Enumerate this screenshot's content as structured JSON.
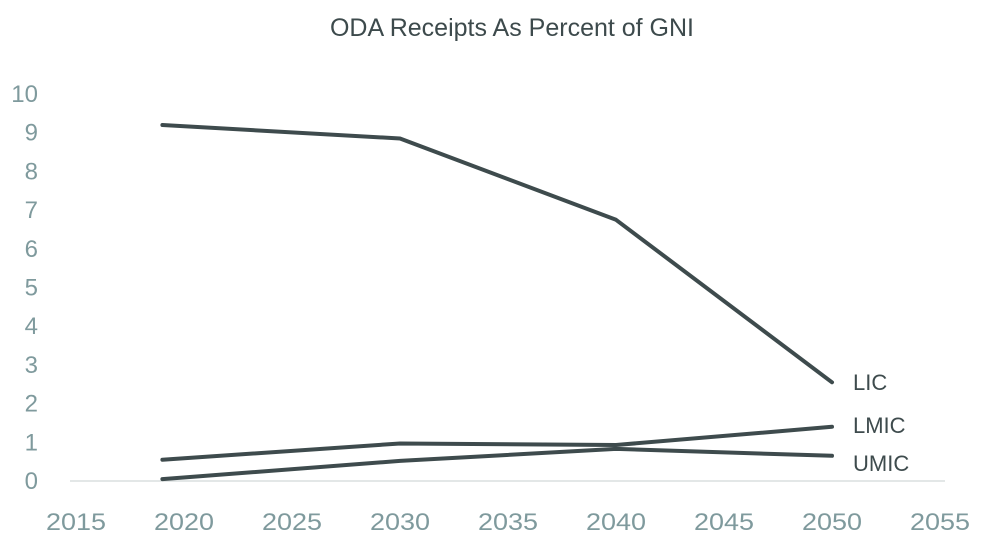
{
  "chart_data": {
    "type": "line",
    "title": "ODA Receipts As Percent of GNI",
    "xlabel": "",
    "ylabel": "",
    "xlim": [
      2015,
      2055
    ],
    "ylim": [
      0,
      10
    ],
    "x_ticks": [
      "2015",
      "2020",
      "2025",
      "2030",
      "2035",
      "2040",
      "2045",
      "2050",
      "2055"
    ],
    "y_ticks": [
      "0",
      "1",
      "2",
      "3",
      "4",
      "5",
      "6",
      "7",
      "8",
      "9",
      "10"
    ],
    "grid": false,
    "legend": "inline-labels-right",
    "x": [
      2019,
      2030,
      2040,
      2050
    ],
    "series": [
      {
        "name": "LIC",
        "values": [
          9.2,
          8.85,
          6.75,
          2.55
        ]
      },
      {
        "name": "LMIC",
        "values": [
          0.55,
          0.97,
          0.93,
          1.4
        ]
      },
      {
        "name": "UMIC",
        "values": [
          0.05,
          0.52,
          0.83,
          0.65
        ]
      }
    ]
  }
}
